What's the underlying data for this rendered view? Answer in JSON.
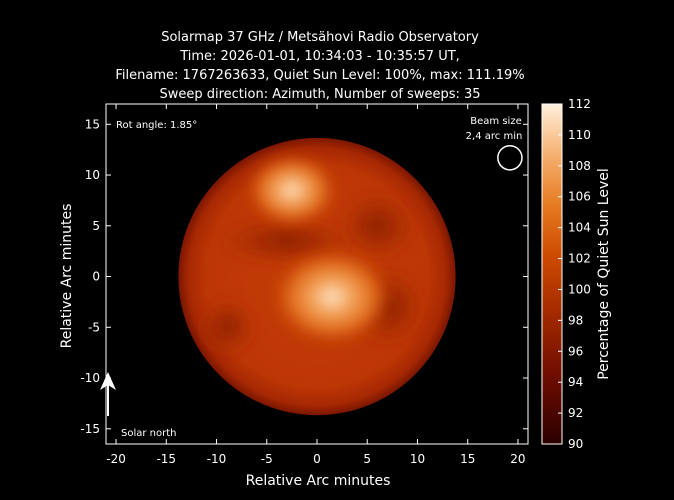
{
  "chart_data": {
    "type": "heatmap",
    "title_lines": [
      "Solarmap 37 GHz / Metsähovi Radio Observatory",
      "Time: 2026-01-01, 10:34:03 - 10:35:57 UT,",
      "Filename: 1767263633, Quiet Sun Level: 100%, max: 111.19%",
      "Sweep direction: Azimuth, Number of sweeps: 35"
    ],
    "xlabel": "Relative Arc minutes",
    "ylabel": "Relative Arc minutes",
    "colorbar_label": "Percentage of Quiet Sun Level",
    "xlim": [
      -21,
      21
    ],
    "ylim": [
      -16.5,
      17
    ],
    "xticks": [
      -20,
      -15,
      -10,
      -5,
      0,
      5,
      10,
      15,
      20
    ],
    "yticks": [
      -15,
      -10,
      -5,
      0,
      5,
      10,
      15
    ],
    "colorbar_range": [
      90,
      112
    ],
    "colorbar_ticks": [
      90,
      92,
      94,
      96,
      98,
      100,
      102,
      104,
      106,
      108,
      110,
      112
    ],
    "colormap": "gist_heat",
    "quiet_sun_level": 100,
    "max_value": 111.19,
    "disk_radius_arcmin": 13.8,
    "disk_center": [
      0,
      0
    ],
    "background_value": 90,
    "hot_spots": [
      {
        "x": 1.5,
        "y": -2.0,
        "peak": 111.19
      },
      {
        "x": -2.5,
        "y": 8.5,
        "peak": 107
      }
    ],
    "annotations": {
      "rot_angle": "Rot angle: 1.85°",
      "beam_size_line1": "Beam size",
      "beam_size_line2": "2,4 arc min",
      "solar_north": "Solar north"
    },
    "beam": {
      "x": 19.2,
      "y": 11.7,
      "diameter_arcmin": 2.4
    }
  },
  "colors": {
    "background": "#000000",
    "axis": "#ffffff",
    "text": "#ffffff"
  }
}
